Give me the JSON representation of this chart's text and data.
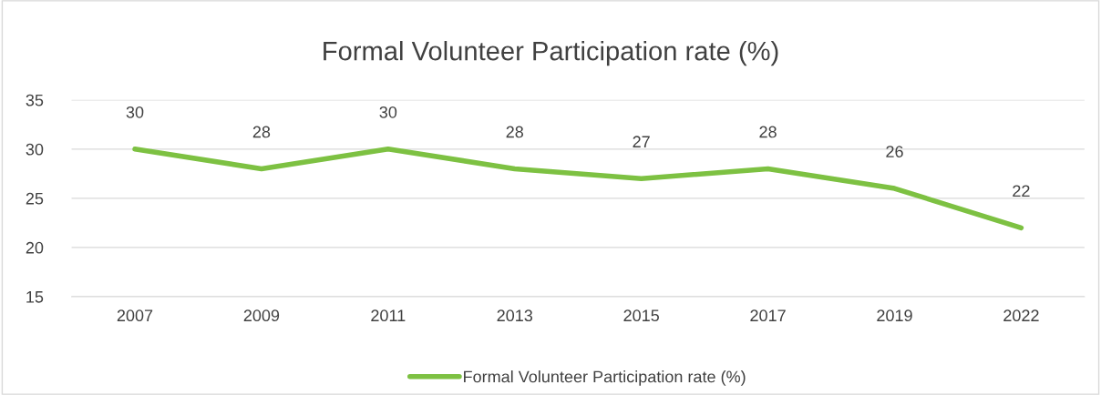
{
  "chart_data": {
    "type": "line",
    "title": "Formal Volunteer Participation rate (%)",
    "categories": [
      "2007",
      "2009",
      "2011",
      "2013",
      "2015",
      "2017",
      "2019",
      "2022"
    ],
    "series": [
      {
        "name": "Formal Volunteer Participation rate (%)",
        "color": "#7dc142",
        "values": [
          30,
          28,
          30,
          28,
          27,
          28,
          26,
          22
        ]
      }
    ],
    "ylim": [
      15,
      35
    ],
    "yticks": [
      15,
      20,
      25,
      30,
      35
    ],
    "grid": "y",
    "legend": "bottom",
    "data_labels": true,
    "marker": "none",
    "line_style": "solid"
  }
}
